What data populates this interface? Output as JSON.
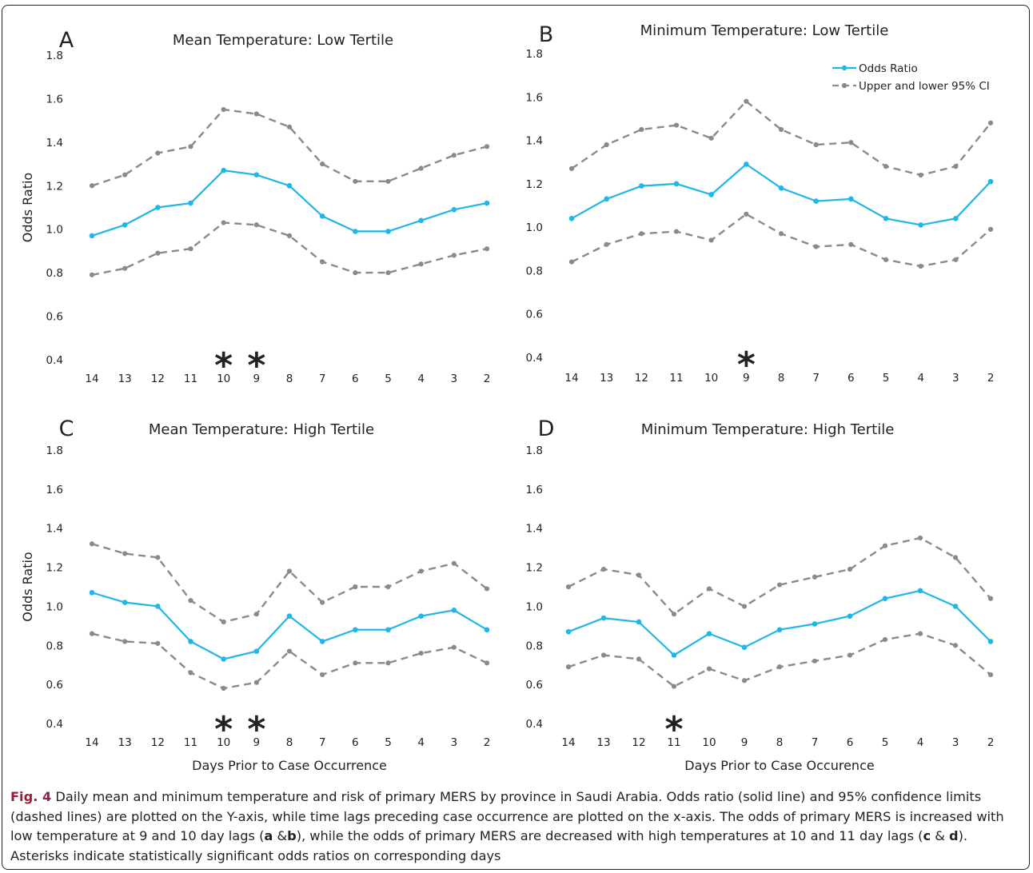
{
  "chart_data": [
    {
      "type": "line",
      "panel_letter": "A",
      "title": "Mean Temperature: Low Tertile",
      "xlabel": "",
      "ylabel": "Odds Ratio",
      "categories": [
        "14",
        "13",
        "12",
        "11",
        "10",
        "9",
        "8",
        "7",
        "6",
        "5",
        "4",
        "3",
        "2"
      ],
      "ylim": [
        0.4,
        1.8
      ],
      "yticks": [
        "0.4",
        "0.6",
        "0.8",
        "1.0",
        "1.2",
        "1.4",
        "1.6",
        "1.8"
      ],
      "series": [
        {
          "values": [
            0.97,
            1.02,
            1.1,
            1.12,
            1.27,
            1.25,
            1.2,
            1.06,
            0.99,
            0.99,
            1.04,
            1.09,
            1.12
          ],
          "color": "#1fb6e8",
          "style": "solid"
        },
        {
          "values": [
            1.2,
            1.25,
            1.35,
            1.38,
            1.55,
            1.53,
            1.47,
            1.3,
            1.22,
            1.22,
            1.28,
            1.34,
            1.38
          ],
          "color": "#8a8a8a",
          "style": "dashed"
        },
        {
          "values": [
            0.79,
            0.82,
            0.89,
            0.91,
            1.03,
            1.02,
            0.97,
            0.85,
            0.8,
            0.8,
            0.84,
            0.88,
            0.91
          ],
          "color": "#8a8a8a",
          "style": "dashed"
        }
      ],
      "significant": [
        "10",
        "9"
      ],
      "significant_marker": "*"
    },
    {
      "type": "line",
      "panel_letter": "B",
      "title": "Minimum Temperature: Low Tertile",
      "xlabel": "",
      "ylabel": "",
      "categories": [
        "14",
        "13",
        "12",
        "11",
        "10",
        "9",
        "8",
        "7",
        "6",
        "5",
        "4",
        "3",
        "2"
      ],
      "ylim": [
        0.4,
        1.8
      ],
      "yticks": [
        "0.4",
        "0.6",
        "0.8",
        "1.0",
        "1.2",
        "1.4",
        "1.6",
        "1.8"
      ],
      "legend": {
        "position": "top-right",
        "entries": [
          "Odds Ratio",
          "Upper and lower 95% CI"
        ]
      },
      "series": [
        {
          "name": "Odds Ratio",
          "values": [
            1.04,
            1.13,
            1.19,
            1.2,
            1.15,
            1.29,
            1.18,
            1.12,
            1.13,
            1.04,
            1.01,
            1.04,
            1.21
          ],
          "color": "#1fb6e8",
          "style": "solid"
        },
        {
          "name": "Upper and lower 95% CI",
          "values": [
            1.27,
            1.38,
            1.45,
            1.47,
            1.41,
            1.58,
            1.45,
            1.38,
            1.39,
            1.28,
            1.24,
            1.28,
            1.48
          ],
          "color": "#8a8a8a",
          "style": "dashed"
        },
        {
          "values": [
            0.84,
            0.92,
            0.97,
            0.98,
            0.94,
            1.06,
            0.97,
            0.91,
            0.92,
            0.85,
            0.82,
            0.85,
            0.99
          ],
          "color": "#8a8a8a",
          "style": "dashed"
        }
      ],
      "significant": [
        "9"
      ],
      "significant_marker": "*"
    },
    {
      "type": "line",
      "panel_letter": "C",
      "title": "Mean Temperature: High Tertile",
      "xlabel": "Days Prior to Case Occurrence",
      "ylabel": "Odds Ratio",
      "categories": [
        "14",
        "13",
        "12",
        "11",
        "10",
        "9",
        "8",
        "7",
        "6",
        "5",
        "4",
        "3",
        "2"
      ],
      "ylim": [
        0.4,
        1.8
      ],
      "yticks": [
        "0.4",
        "0.6",
        "0.8",
        "1.0",
        "1.2",
        "1.4",
        "1.6",
        "1.8"
      ],
      "series": [
        {
          "values": [
            1.07,
            1.02,
            1.0,
            0.82,
            0.73,
            0.77,
            0.95,
            0.82,
            0.88,
            0.88,
            0.95,
            0.98,
            0.88
          ],
          "color": "#1fb6e8",
          "style": "solid"
        },
        {
          "values": [
            1.32,
            1.27,
            1.25,
            1.03,
            0.92,
            0.96,
            1.18,
            1.02,
            1.1,
            1.1,
            1.18,
            1.22,
            1.09
          ],
          "color": "#8a8a8a",
          "style": "dashed"
        },
        {
          "values": [
            0.86,
            0.82,
            0.81,
            0.66,
            0.58,
            0.61,
            0.77,
            0.65,
            0.71,
            0.71,
            0.76,
            0.79,
            0.71
          ],
          "color": "#8a8a8a",
          "style": "dashed"
        }
      ],
      "significant": [
        "10",
        "9"
      ],
      "significant_marker": "*"
    },
    {
      "type": "line",
      "panel_letter": "D",
      "title": "Minimum Temperature: High Tertile",
      "xlabel": "Days Prior to Case Occurence",
      "ylabel": "",
      "categories": [
        "14",
        "13",
        "12",
        "11",
        "10",
        "9",
        "8",
        "7",
        "6",
        "5",
        "4",
        "3",
        "2"
      ],
      "ylim": [
        0.4,
        1.8
      ],
      "yticks": [
        "0.4",
        "0.6",
        "0.8",
        "1.0",
        "1.2",
        "1.4",
        "1.6",
        "1.8"
      ],
      "series": [
        {
          "values": [
            0.87,
            0.94,
            0.92,
            0.75,
            0.86,
            0.79,
            0.88,
            0.91,
            0.95,
            1.04,
            1.08,
            1.0,
            0.82
          ],
          "color": "#1fb6e8",
          "style": "solid"
        },
        {
          "values": [
            1.1,
            1.19,
            1.16,
            0.96,
            1.09,
            1.0,
            1.11,
            1.15,
            1.19,
            1.31,
            1.35,
            1.25,
            1.04
          ],
          "color": "#8a8a8a",
          "style": "dashed"
        },
        {
          "values": [
            0.69,
            0.75,
            0.73,
            0.59,
            0.68,
            0.62,
            0.69,
            0.72,
            0.75,
            0.83,
            0.86,
            0.8,
            0.65
          ],
          "color": "#8a8a8a",
          "style": "dashed"
        }
      ],
      "significant": [
        "11"
      ],
      "significant_marker": "*"
    }
  ],
  "caption": {
    "label": "Fig. 4",
    "text": " Daily mean and minimum temperature and risk of primary MERS by province in Saudi Arabia. Odds ratio (solid line) and 95% confidence limits (dashed lines) are plotted on the Y-axis, while time lags preceding case occurrence are plotted on the x-axis. The odds of primary MERS is increased with low temperature at 9 and 10 day lags (",
    "b1": "a",
    "t2": " &",
    "b2": "b",
    "t3": "), while the odds of primary MERS are decreased with high temperatures at 10 and 11 day lags (",
    "b3": "c",
    "t4": " & ",
    "b4": "d",
    "t5": "). Asterisks indicate statistically significant odds ratios on corresponding days"
  },
  "colors": {
    "odds_ratio": "#1fb6e8",
    "ci": "#8a8a8a",
    "caption_label": "#9a1e3c"
  }
}
